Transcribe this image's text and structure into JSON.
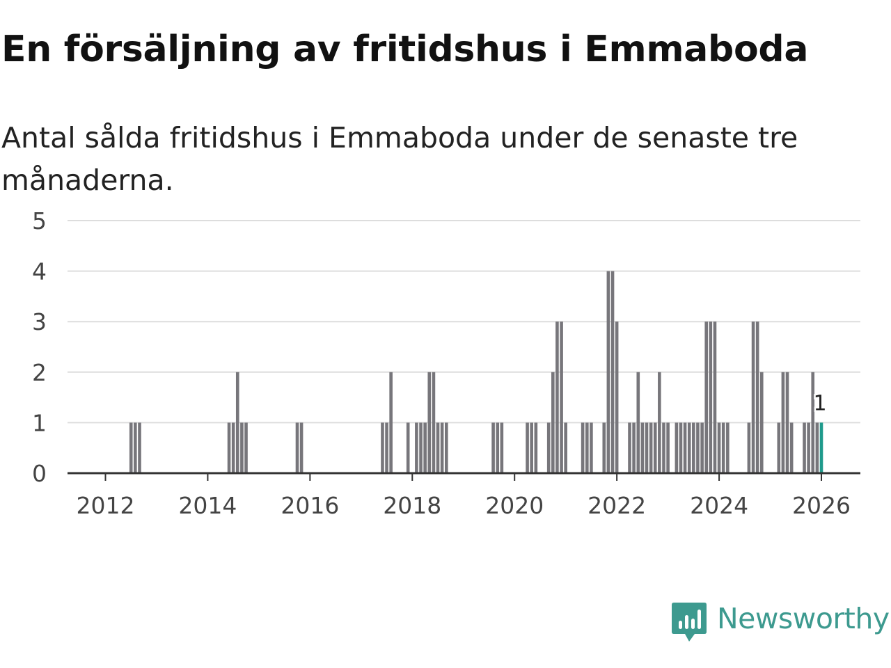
{
  "title": "En försäljning av fritidshus i Emmaboda",
  "subtitle": "Antal sålda fritidshus i Emmaboda under de senaste tre månaderna.",
  "brand": {
    "name": "Newsworthy",
    "color": "#3d9a8f",
    "icon": "newsworthy-logo-icon"
  },
  "colors": {
    "bar": "#77767b",
    "highlight": "#1f9a8c",
    "grid": "#dddddd",
    "axis": "#333333"
  },
  "chart_data": {
    "type": "bar",
    "title": "En försäljning av fritidshus i Emmaboda",
    "subtitle": "Antal sålda fritidshus i Emmaboda under de senaste tre månaderna.",
    "xlabel": "",
    "ylabel": "",
    "ylim": [
      0,
      5
    ],
    "yticks": [
      0,
      1,
      2,
      3,
      4,
      5
    ],
    "xlim": [
      2011.25,
      2026.75
    ],
    "xticks": [
      2012,
      2014,
      2016,
      2018,
      2020,
      2022,
      2024,
      2026
    ],
    "grid": true,
    "legend": "none",
    "series": [
      {
        "name": "Antal sålda fritidshus",
        "points": [
          {
            "x": 2012.5,
            "y": 1
          },
          {
            "x": 2012.583,
            "y": 1
          },
          {
            "x": 2012.667,
            "y": 1
          },
          {
            "x": 2014.417,
            "y": 1
          },
          {
            "x": 2014.5,
            "y": 1
          },
          {
            "x": 2014.583,
            "y": 2
          },
          {
            "x": 2014.667,
            "y": 1
          },
          {
            "x": 2014.75,
            "y": 1
          },
          {
            "x": 2015.75,
            "y": 1
          },
          {
            "x": 2015.833,
            "y": 1
          },
          {
            "x": 2017.417,
            "y": 1
          },
          {
            "x": 2017.5,
            "y": 1
          },
          {
            "x": 2017.583,
            "y": 2
          },
          {
            "x": 2017.917,
            "y": 1
          },
          {
            "x": 2018.083,
            "y": 1
          },
          {
            "x": 2018.167,
            "y": 1
          },
          {
            "x": 2018.25,
            "y": 1
          },
          {
            "x": 2018.333,
            "y": 2
          },
          {
            "x": 2018.417,
            "y": 2
          },
          {
            "x": 2018.5,
            "y": 1
          },
          {
            "x": 2018.583,
            "y": 1
          },
          {
            "x": 2018.667,
            "y": 1
          },
          {
            "x": 2019.583,
            "y": 1
          },
          {
            "x": 2019.667,
            "y": 1
          },
          {
            "x": 2019.75,
            "y": 1
          },
          {
            "x": 2020.25,
            "y": 1
          },
          {
            "x": 2020.333,
            "y": 1
          },
          {
            "x": 2020.417,
            "y": 1
          },
          {
            "x": 2020.667,
            "y": 1
          },
          {
            "x": 2020.75,
            "y": 2
          },
          {
            "x": 2020.833,
            "y": 3
          },
          {
            "x": 2020.917,
            "y": 3
          },
          {
            "x": 2021.0,
            "y": 1
          },
          {
            "x": 2021.333,
            "y": 1
          },
          {
            "x": 2021.417,
            "y": 1
          },
          {
            "x": 2021.5,
            "y": 1
          },
          {
            "x": 2021.75,
            "y": 1
          },
          {
            "x": 2021.833,
            "y": 4
          },
          {
            "x": 2021.917,
            "y": 4
          },
          {
            "x": 2022.0,
            "y": 3
          },
          {
            "x": 2022.25,
            "y": 1
          },
          {
            "x": 2022.333,
            "y": 1
          },
          {
            "x": 2022.417,
            "y": 2
          },
          {
            "x": 2022.5,
            "y": 1
          },
          {
            "x": 2022.583,
            "y": 1
          },
          {
            "x": 2022.667,
            "y": 1
          },
          {
            "x": 2022.75,
            "y": 1
          },
          {
            "x": 2022.833,
            "y": 2
          },
          {
            "x": 2022.917,
            "y": 1
          },
          {
            "x": 2023.0,
            "y": 1
          },
          {
            "x": 2023.167,
            "y": 1
          },
          {
            "x": 2023.25,
            "y": 1
          },
          {
            "x": 2023.333,
            "y": 1
          },
          {
            "x": 2023.417,
            "y": 1
          },
          {
            "x": 2023.5,
            "y": 1
          },
          {
            "x": 2023.583,
            "y": 1
          },
          {
            "x": 2023.667,
            "y": 1
          },
          {
            "x": 2023.75,
            "y": 3
          },
          {
            "x": 2023.833,
            "y": 3
          },
          {
            "x": 2023.917,
            "y": 3
          },
          {
            "x": 2024.0,
            "y": 1
          },
          {
            "x": 2024.083,
            "y": 1
          },
          {
            "x": 2024.167,
            "y": 1
          },
          {
            "x": 2024.583,
            "y": 1
          },
          {
            "x": 2024.667,
            "y": 3
          },
          {
            "x": 2024.75,
            "y": 3
          },
          {
            "x": 2024.833,
            "y": 2
          },
          {
            "x": 2025.167,
            "y": 1
          },
          {
            "x": 2025.25,
            "y": 2
          },
          {
            "x": 2025.333,
            "y": 2
          },
          {
            "x": 2025.417,
            "y": 1
          },
          {
            "x": 2025.667,
            "y": 1
          },
          {
            "x": 2025.75,
            "y": 1
          },
          {
            "x": 2025.833,
            "y": 2
          },
          {
            "x": 2025.917,
            "y": 1
          },
          {
            "x": 2026.0,
            "y": 1,
            "highlight": true
          }
        ]
      }
    ],
    "annotations": [
      {
        "x": 2026.0,
        "y": 1,
        "text": "1"
      }
    ]
  }
}
